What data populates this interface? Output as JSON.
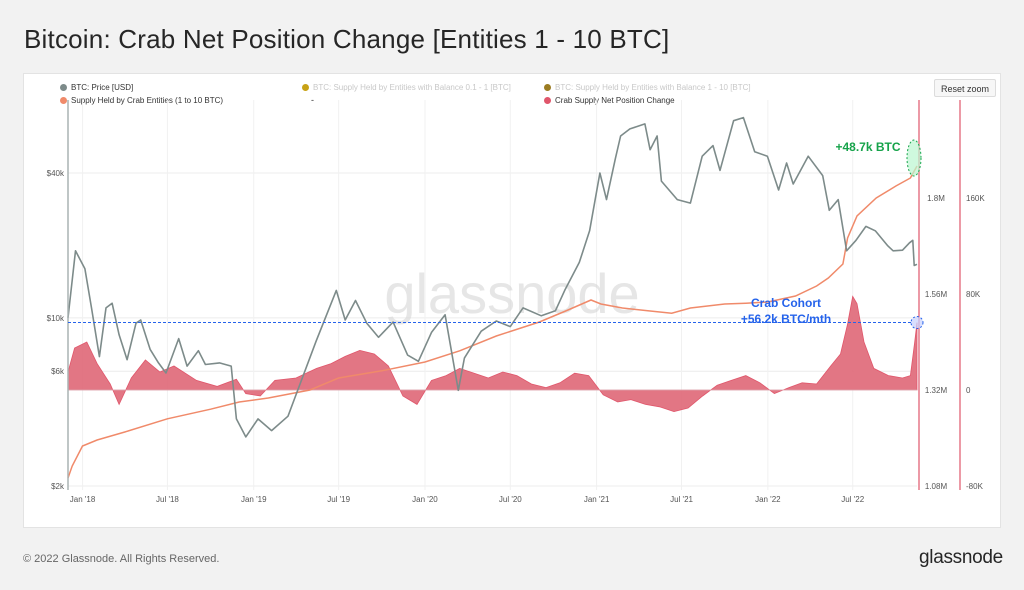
{
  "page": {
    "title": "Bitcoin: Crab Net Position Change [Entities 1 - 10 BTC]",
    "copyright": "© 2022 Glassnode. All Rights Reserved.",
    "logo": "glassnode",
    "watermark": "glassnode",
    "reset_zoom": "Reset zoom"
  },
  "legend": {
    "items": [
      {
        "label": "BTC: Price [USD]",
        "color": "#7d8b8a",
        "enabled": true
      },
      {
        "label": "BTC: Supply Held by Entities with Balance 0.1 - 1 [BTC]",
        "color": "#c8a215",
        "enabled": false
      },
      {
        "label": "BTC: Supply Held by Entities with Balance 1 - 10 [BTC]",
        "color": "#9b7c22",
        "enabled": false
      },
      {
        "label": "Supply Held by Crab Entities (1 to 10 BTC)",
        "color": "#f08a6a",
        "enabled": true
      },
      {
        "label": "-",
        "color": "",
        "enabled": true
      },
      {
        "label": "Crab Supply Net Position Change",
        "color": "#e0566b",
        "enabled": true
      }
    ]
  },
  "annotations": {
    "supply_change": "+48.7k BTC",
    "cohort_line1": "Crab Cohort",
    "cohort_line2": "+56.2k BTC/mth"
  },
  "chart_data": {
    "type": "line",
    "x_tick_labels": [
      "Jan '18",
      "Jul '18",
      "Jan '19",
      "Jul '19",
      "Jan '20",
      "Jul '20",
      "Jan '21",
      "Jul '21",
      "Jan '22",
      "Jul '22"
    ],
    "price_axis": {
      "scale": "log",
      "ticks": [
        "$2k",
        "$6k",
        "$10k",
        "$40k"
      ],
      "tick_values": [
        2000,
        6000,
        10000,
        40000
      ]
    },
    "supply_axis": {
      "ticks": [
        "1.08M",
        "1.32M",
        "1.56M",
        "1.8M"
      ],
      "tick_values": [
        1080000,
        1320000,
        1560000,
        1800000
      ]
    },
    "change_axis": {
      "ticks": [
        "-80K",
        "0",
        "80K",
        "160K"
      ],
      "tick_values": [
        -80000,
        0,
        80000,
        160000
      ]
    },
    "colors": {
      "price": "#7d8b8a",
      "supply": "#f08a6a",
      "change": "#e0566b",
      "change_fill": "#e06a7a",
      "marker_line": "#e0566b",
      "annotation_green": "#16a34a",
      "annotation_blue": "#2563eb"
    },
    "series": [
      {
        "name": "BTC: Price [USD]",
        "axis": "price",
        "points": [
          [
            "2017-12-01",
            10000
          ],
          [
            "2017-12-17",
            19000
          ],
          [
            "2018-01-06",
            16000
          ],
          [
            "2018-01-20",
            11000
          ],
          [
            "2018-02-06",
            6900
          ],
          [
            "2018-02-20",
            11000
          ],
          [
            "2018-03-05",
            11500
          ],
          [
            "2018-03-20",
            8500
          ],
          [
            "2018-04-06",
            6700
          ],
          [
            "2018-04-25",
            9500
          ],
          [
            "2018-05-05",
            9800
          ],
          [
            "2018-05-25",
            7400
          ],
          [
            "2018-06-12",
            6500
          ],
          [
            "2018-06-28",
            5900
          ],
          [
            "2018-07-25",
            8200
          ],
          [
            "2018-08-12",
            6300
          ],
          [
            "2018-09-05",
            7300
          ],
          [
            "2018-09-20",
            6400
          ],
          [
            "2018-10-20",
            6500
          ],
          [
            "2018-11-14",
            6300
          ],
          [
            "2018-11-25",
            3800
          ],
          [
            "2018-12-15",
            3200
          ],
          [
            "2019-01-10",
            3800
          ],
          [
            "2019-02-08",
            3400
          ],
          [
            "2019-03-15",
            3900
          ],
          [
            "2019-04-03",
            4900
          ],
          [
            "2019-05-14",
            8000
          ],
          [
            "2019-06-26",
            13000
          ],
          [
            "2019-07-15",
            9800
          ],
          [
            "2019-08-06",
            11800
          ],
          [
            "2019-08-30",
            9500
          ],
          [
            "2019-09-24",
            8300
          ],
          [
            "2019-10-25",
            9600
          ],
          [
            "2019-11-25",
            7000
          ],
          [
            "2019-12-18",
            6600
          ],
          [
            "2020-01-15",
            8700
          ],
          [
            "2020-02-13",
            10300
          ],
          [
            "2020-03-12",
            5000
          ],
          [
            "2020-03-25",
            6800
          ],
          [
            "2020-04-30",
            8800
          ],
          [
            "2020-06-01",
            9700
          ],
          [
            "2020-07-01",
            9200
          ],
          [
            "2020-07-28",
            11000
          ],
          [
            "2020-09-05",
            10200
          ],
          [
            "2020-10-05",
            10700
          ],
          [
            "2020-10-25",
            13000
          ],
          [
            "2020-11-25",
            17000
          ],
          [
            "2020-12-17",
            23000
          ],
          [
            "2021-01-08",
            40000
          ],
          [
            "2021-01-22",
            31000
          ],
          [
            "2021-02-10",
            46000
          ],
          [
            "2021-02-21",
            57000
          ],
          [
            "2021-03-13",
            61000
          ],
          [
            "2021-04-14",
            64000
          ],
          [
            "2021-04-25",
            50000
          ],
          [
            "2021-05-10",
            57000
          ],
          [
            "2021-05-19",
            37000
          ],
          [
            "2021-06-22",
            31000
          ],
          [
            "2021-07-20",
            30000
          ],
          [
            "2021-08-14",
            47000
          ],
          [
            "2021-09-06",
            52000
          ],
          [
            "2021-09-21",
            41000
          ],
          [
            "2021-10-20",
            66000
          ],
          [
            "2021-11-10",
            68000
          ],
          [
            "2021-12-04",
            49000
          ],
          [
            "2021-12-31",
            47000
          ],
          [
            "2022-01-24",
            34000
          ],
          [
            "2022-02-10",
            44000
          ],
          [
            "2022-02-24",
            36000
          ],
          [
            "2022-03-28",
            47000
          ],
          [
            "2022-04-28",
            39000
          ],
          [
            "2022-05-12",
            28000
          ],
          [
            "2022-05-31",
            31000
          ],
          [
            "2022-06-18",
            19000
          ],
          [
            "2022-07-08",
            21000
          ],
          [
            "2022-07-29",
            24000
          ],
          [
            "2022-08-18",
            23000
          ],
          [
            "2022-09-13",
            20000
          ],
          [
            "2022-09-25",
            19000
          ],
          [
            "2022-10-15",
            19100
          ],
          [
            "2022-10-30",
            20500
          ],
          [
            "2022-11-06",
            21000
          ],
          [
            "2022-11-09",
            16500
          ],
          [
            "2022-11-15",
            16700
          ]
        ]
      },
      {
        "name": "Supply Held by Crab Entities (1 to 10 BTC)",
        "axis": "supply",
        "points": [
          [
            "2017-12-01",
            1100000
          ],
          [
            "2017-12-10",
            1130000
          ],
          [
            "2018-01-01",
            1180000
          ],
          [
            "2018-02-01",
            1195000
          ],
          [
            "2018-04-01",
            1215000
          ],
          [
            "2018-07-01",
            1248000
          ],
          [
            "2018-10-01",
            1272000
          ],
          [
            "2018-12-01",
            1290000
          ],
          [
            "2019-02-01",
            1300000
          ],
          [
            "2019-05-01",
            1320000
          ],
          [
            "2019-07-01",
            1350000
          ],
          [
            "2019-10-01",
            1368000
          ],
          [
            "2020-01-01",
            1390000
          ],
          [
            "2020-03-15",
            1418000
          ],
          [
            "2020-06-01",
            1455000
          ],
          [
            "2020-09-01",
            1490000
          ],
          [
            "2020-11-01",
            1520000
          ],
          [
            "2020-12-20",
            1545000
          ],
          [
            "2021-01-10",
            1535000
          ],
          [
            "2021-02-25",
            1525000
          ],
          [
            "2021-04-20",
            1518000
          ],
          [
            "2021-06-10",
            1512000
          ],
          [
            "2021-07-20",
            1525000
          ],
          [
            "2021-10-01",
            1535000
          ],
          [
            "2021-11-15",
            1537000
          ],
          [
            "2022-01-01",
            1540000
          ],
          [
            "2022-03-01",
            1555000
          ],
          [
            "2022-04-15",
            1580000
          ],
          [
            "2022-05-10",
            1600000
          ],
          [
            "2022-06-10",
            1635000
          ],
          [
            "2022-06-20",
            1700000
          ],
          [
            "2022-07-10",
            1755000
          ],
          [
            "2022-08-20",
            1800000
          ],
          [
            "2022-10-01",
            1830000
          ],
          [
            "2022-11-01",
            1850000
          ],
          [
            "2022-11-15",
            1880000
          ]
        ]
      },
      {
        "name": "Crab Supply Net Position Change",
        "axis": "change",
        "type": "area",
        "points": [
          [
            "2017-12-01",
            15000
          ],
          [
            "2017-12-15",
            35000
          ],
          [
            "2018-01-10",
            40000
          ],
          [
            "2018-02-01",
            22000
          ],
          [
            "2018-03-01",
            5000
          ],
          [
            "2018-03-20",
            -12000
          ],
          [
            "2018-04-15",
            10000
          ],
          [
            "2018-05-15",
            25000
          ],
          [
            "2018-06-15",
            15000
          ],
          [
            "2018-07-15",
            20000
          ],
          [
            "2018-09-01",
            8000
          ],
          [
            "2018-10-15",
            3000
          ],
          [
            "2018-11-25",
            9000
          ],
          [
            "2018-12-15",
            -3000
          ],
          [
            "2019-01-15",
            -5000
          ],
          [
            "2019-02-15",
            8000
          ],
          [
            "2019-04-01",
            10000
          ],
          [
            "2019-05-15",
            18000
          ],
          [
            "2019-06-15",
            22000
          ],
          [
            "2019-07-15",
            28000
          ],
          [
            "2019-08-15",
            33000
          ],
          [
            "2019-09-15",
            30000
          ],
          [
            "2019-10-15",
            20000
          ],
          [
            "2019-11-15",
            -5000
          ],
          [
            "2019-12-15",
            -12000
          ],
          [
            "2020-01-15",
            8000
          ],
          [
            "2020-02-15",
            12000
          ],
          [
            "2020-03-15",
            18000
          ],
          [
            "2020-04-15",
            14000
          ],
          [
            "2020-05-15",
            10000
          ],
          [
            "2020-06-15",
            15000
          ],
          [
            "2020-07-15",
            12000
          ],
          [
            "2020-08-15",
            5000
          ],
          [
            "2020-09-15",
            2000
          ],
          [
            "2020-10-15",
            6000
          ],
          [
            "2020-11-15",
            14000
          ],
          [
            "2020-12-15",
            12000
          ],
          [
            "2021-01-15",
            -4000
          ],
          [
            "2021-02-15",
            -10000
          ],
          [
            "2021-03-15",
            -8000
          ],
          [
            "2021-04-15",
            -12000
          ],
          [
            "2021-05-15",
            -14000
          ],
          [
            "2021-06-15",
            -18000
          ],
          [
            "2021-07-15",
            -15000
          ],
          [
            "2021-08-15",
            -5000
          ],
          [
            "2021-09-15",
            4000
          ],
          [
            "2021-10-15",
            8000
          ],
          [
            "2021-11-15",
            12000
          ],
          [
            "2021-12-15",
            6000
          ],
          [
            "2022-01-15",
            -3000
          ],
          [
            "2022-02-15",
            2000
          ],
          [
            "2022-03-15",
            6000
          ],
          [
            "2022-04-15",
            5000
          ],
          [
            "2022-05-15",
            20000
          ],
          [
            "2022-06-05",
            30000
          ],
          [
            "2022-06-20",
            55000
          ],
          [
            "2022-07-01",
            78000
          ],
          [
            "2022-07-10",
            72000
          ],
          [
            "2022-07-25",
            40000
          ],
          [
            "2022-08-15",
            18000
          ],
          [
            "2022-09-15",
            12000
          ],
          [
            "2022-10-15",
            10000
          ],
          [
            "2022-11-01",
            12000
          ],
          [
            "2022-11-10",
            40000
          ],
          [
            "2022-11-15",
            56200
          ]
        ]
      }
    ]
  }
}
